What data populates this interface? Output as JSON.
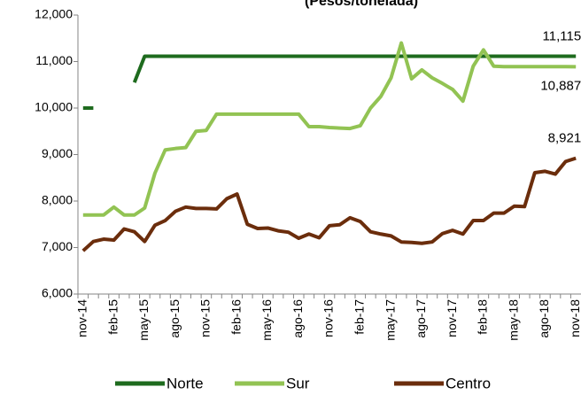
{
  "chart_data": {
    "type": "line",
    "subtitle": "(Pesos/tonelada)",
    "categories": [
      "nov-14",
      null,
      null,
      "feb-15",
      null,
      null,
      "may-15",
      null,
      null,
      "ago-15",
      null,
      null,
      "nov-15",
      null,
      null,
      "feb-16",
      null,
      null,
      "may-16",
      null,
      null,
      "ago-16",
      null,
      null,
      "nov-16",
      null,
      null,
      "feb-17",
      null,
      null,
      "may-17",
      null,
      null,
      "ago-17",
      null,
      null,
      "nov-17",
      null,
      null,
      "feb-18",
      null,
      null,
      "may-18",
      null,
      null,
      "ago-18",
      null,
      null,
      "nov-18"
    ],
    "series": [
      {
        "name": "Norte",
        "color": "#1e6b1e",
        "values": [
          10000,
          10000,
          null,
          null,
          null,
          10550,
          11115,
          11115,
          11115,
          11115,
          11115,
          11115,
          11115,
          11115,
          11115,
          11115,
          11115,
          11115,
          11115,
          11115,
          11115,
          11115,
          11115,
          11115,
          11115,
          11115,
          11115,
          11115,
          11115,
          11115,
          11115,
          11115,
          11115,
          11115,
          11115,
          11115,
          11115,
          11115,
          11115,
          11115,
          11115,
          11115,
          11115,
          11115,
          11115,
          11115,
          11115,
          11115,
          11115
        ],
        "value_labels": [
          null,
          null,
          null,
          null,
          null,
          null,
          null,
          null,
          null,
          null,
          null,
          null,
          null,
          null,
          null,
          null,
          null,
          null,
          null,
          null,
          null,
          null,
          null,
          null,
          null,
          null,
          null,
          null,
          null,
          null,
          null,
          null,
          null,
          null,
          null,
          null,
          null,
          null,
          null,
          null,
          null,
          null,
          null,
          null,
          null,
          null,
          null,
          null,
          "11,115"
        ]
      },
      {
        "name": "Sur",
        "color": "#92c353",
        "values": [
          7700,
          7700,
          7700,
          7870,
          7700,
          7700,
          7850,
          8600,
          9100,
          9130,
          9150,
          9500,
          9520,
          9870,
          9870,
          9870,
          9870,
          9870,
          9870,
          9870,
          9870,
          9870,
          9600,
          9600,
          9580,
          9570,
          9560,
          9620,
          10000,
          10250,
          10650,
          11400,
          10630,
          10820,
          10650,
          10530,
          10400,
          10150,
          10900,
          11250,
          10900,
          10890,
          10890,
          10890,
          10890,
          10890,
          10890,
          10890,
          10887
        ],
        "value_labels": [
          null,
          null,
          null,
          null,
          null,
          null,
          null,
          null,
          null,
          null,
          null,
          null,
          null,
          null,
          null,
          null,
          null,
          null,
          null,
          null,
          null,
          null,
          null,
          null,
          null,
          null,
          null,
          null,
          null,
          null,
          null,
          null,
          null,
          null,
          null,
          null,
          null,
          null,
          null,
          null,
          null,
          null,
          null,
          null,
          null,
          null,
          null,
          null,
          "10,887"
        ]
      },
      {
        "name": "Centro",
        "color": "#6b2d0c",
        "values": [
          6930,
          7130,
          7180,
          7160,
          7400,
          7340,
          7130,
          7480,
          7580,
          7780,
          7870,
          7840,
          7840,
          7830,
          8050,
          8150,
          7500,
          7410,
          7420,
          7360,
          7330,
          7200,
          7290,
          7210,
          7470,
          7490,
          7640,
          7560,
          7340,
          7290,
          7250,
          7120,
          7110,
          7090,
          7120,
          7300,
          7370,
          7290,
          7580,
          7580,
          7740,
          7740,
          7890,
          7880,
          8610,
          8640,
          8580,
          8850,
          8921
        ],
        "value_labels": [
          null,
          null,
          null,
          null,
          null,
          null,
          null,
          null,
          null,
          null,
          null,
          null,
          null,
          null,
          null,
          null,
          null,
          null,
          null,
          null,
          null,
          null,
          null,
          null,
          null,
          null,
          null,
          null,
          null,
          null,
          null,
          null,
          null,
          null,
          null,
          null,
          null,
          null,
          null,
          null,
          null,
          null,
          null,
          null,
          null,
          null,
          null,
          null,
          "8,921"
        ]
      }
    ],
    "ylim": [
      6000,
      12000
    ],
    "yticks": [
      {
        "value": 6000,
        "label": "6,000"
      },
      {
        "value": 7000,
        "label": "7,000"
      },
      {
        "value": 8000,
        "label": "8,000"
      },
      {
        "value": 9000,
        "label": "9,000"
      },
      {
        "value": 10000,
        "label": "10,000"
      },
      {
        "value": 11000,
        "label": "11,000"
      },
      {
        "value": 12000,
        "label": "12,000"
      }
    ],
    "grid": false,
    "legend": "bottom"
  }
}
